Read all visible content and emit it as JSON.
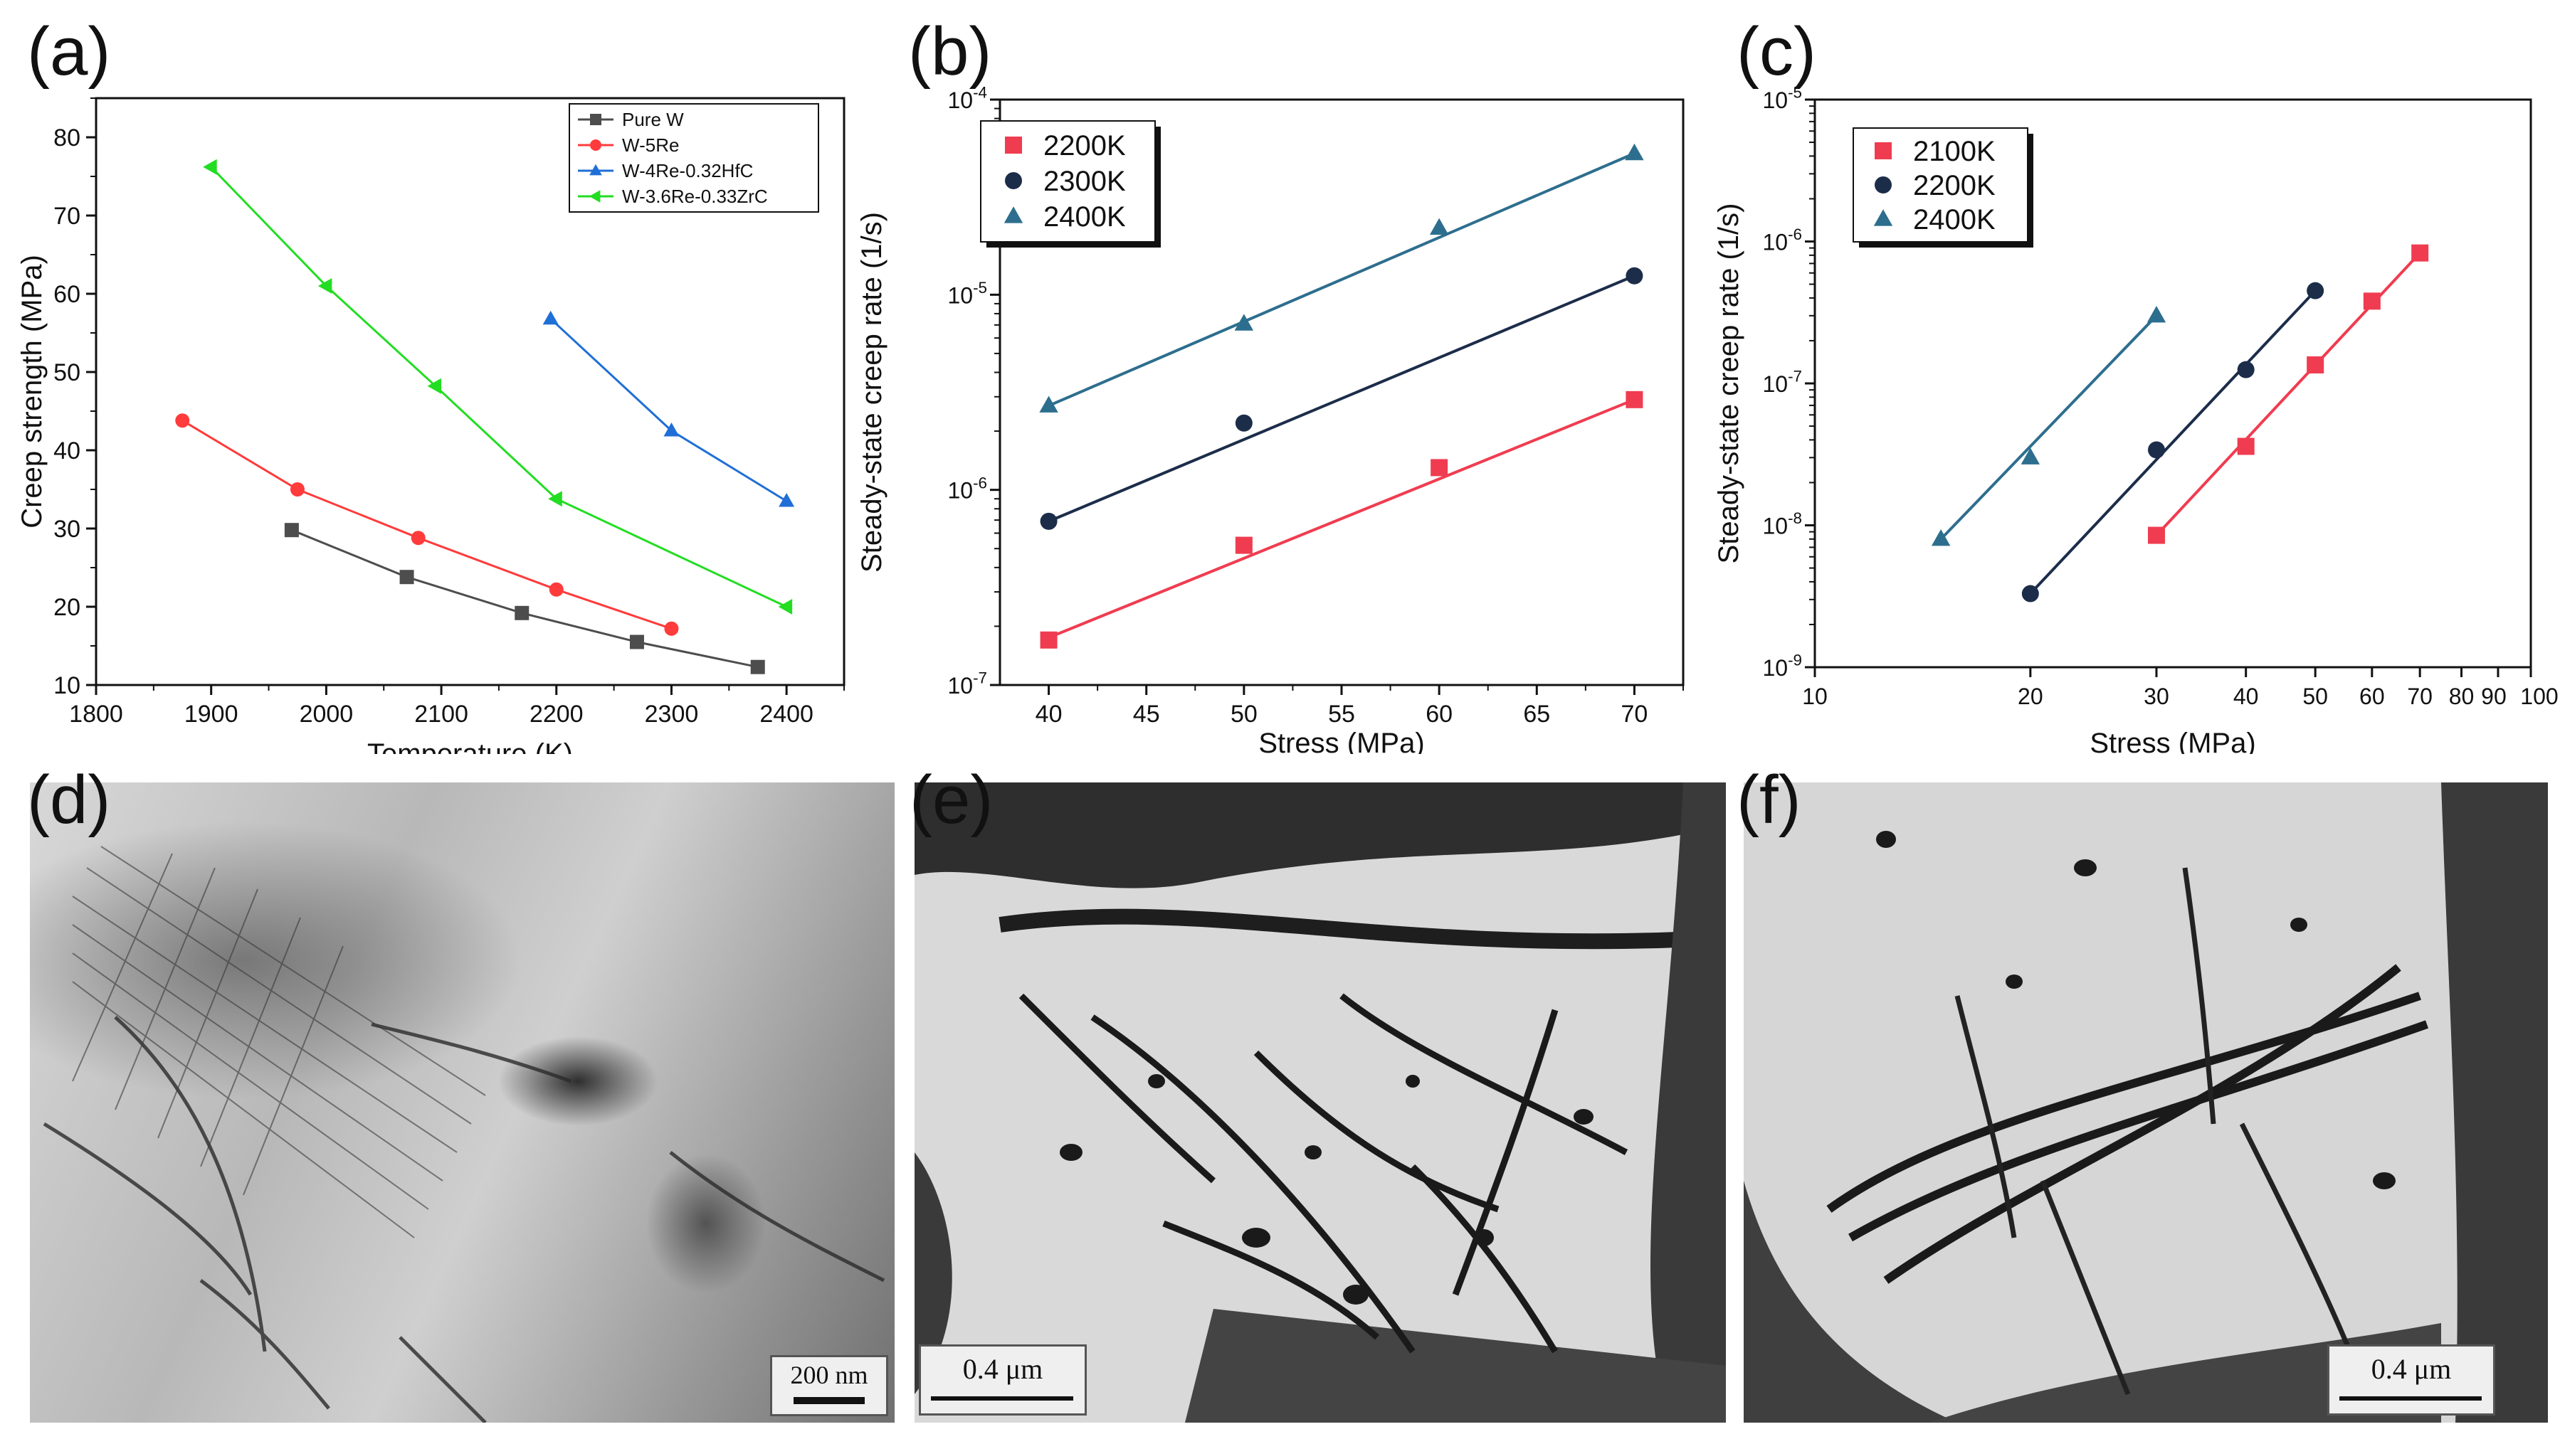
{
  "panels": {
    "a": "(a)",
    "b": "(b)",
    "c": "(c)",
    "d": "(d)",
    "e": "(e)",
    "f": "(f)"
  },
  "micrographs": {
    "d": {
      "scale_label": "200 nm"
    },
    "e": {
      "scale_label": "0.4 μm"
    },
    "f": {
      "scale_label": "0.4 μm"
    }
  },
  "colors": {
    "pure_w": "#4d4d4d",
    "w5re": "#ff3b3b",
    "hfc": "#1f6fd6",
    "zrc": "#22dd22",
    "red": "#f03c50",
    "navy": "#1c2d4a",
    "teal": "#2d6e8e"
  },
  "chart_data": [
    {
      "type": "line",
      "xlabel": "Temperature (K)",
      "ylabel": "Creep strength (MPa)",
      "xlim": [
        1800,
        2450
      ],
      "ylim": [
        10,
        85
      ],
      "xticks": [
        1800,
        1900,
        2000,
        2100,
        2200,
        2300,
        2400
      ],
      "yticks": [
        10,
        20,
        30,
        40,
        50,
        60,
        70,
        80
      ],
      "legend_position": "top-right",
      "series": [
        {
          "name": "Pure W",
          "marker": "square",
          "x": [
            1970,
            2070,
            2170,
            2270,
            2375
          ],
          "y": [
            29.8,
            23.8,
            19.2,
            15.5,
            12.3
          ]
        },
        {
          "name": "W-5Re",
          "marker": "circle",
          "x": [
            1875,
            1975,
            2080,
            2200,
            2300
          ],
          "y": [
            43.8,
            35.0,
            28.8,
            22.2,
            17.2
          ]
        },
        {
          "name": "W-4Re-0.32HfC",
          "marker": "triangle-up",
          "x": [
            2195,
            2300,
            2400
          ],
          "y": [
            56.8,
            42.5,
            33.5
          ]
        },
        {
          "name": "W-3.6Re-0.33ZrC",
          "marker": "triangle-left",
          "x": [
            1900,
            2000,
            2095,
            2200,
            2400
          ],
          "y": [
            76.2,
            61.0,
            48.2,
            33.8,
            20.0
          ]
        }
      ]
    },
    {
      "type": "scatter",
      "xlabel": "Stress (MPa)",
      "ylabel": "Steady-state creep rate (1/s)",
      "xlim": [
        37.5,
        72.5
      ],
      "ylim": [
        1e-07,
        0.0001
      ],
      "yscale": "log",
      "xticks": [
        40,
        45,
        50,
        55,
        60,
        65,
        70
      ],
      "yticks": [
        "10^-7",
        "10^-6",
        "10^-5",
        "10^-4"
      ],
      "legend_position": "top-left",
      "series": [
        {
          "name": "2200K",
          "marker": "square",
          "x": [
            40,
            50,
            60,
            70
          ],
          "y": [
            1.7e-07,
            5.2e-07,
            1.3e-06,
            2.9e-06
          ],
          "fit": [
            [
              40,
              1.75e-07
            ],
            [
              70,
              2.9e-06
            ]
          ]
        },
        {
          "name": "2300K",
          "marker": "circle",
          "x": [
            40,
            50,
            70
          ],
          "y": [
            6.9e-07,
            2.2e-06,
            1.25e-05
          ],
          "fit": [
            [
              40,
              6.9e-07
            ],
            [
              70,
              1.25e-05
            ]
          ]
        },
        {
          "name": "2400K",
          "marker": "triangle-up",
          "x": [
            40,
            50,
            60,
            70
          ],
          "y": [
            2.7e-06,
            7.1e-06,
            2.2e-05,
            5.3e-05
          ],
          "fit": [
            [
              40,
              2.7e-06
            ],
            [
              70,
              5.3e-05
            ]
          ]
        }
      ]
    },
    {
      "type": "scatter",
      "xlabel": "Stress (MPa)",
      "ylabel": "Steady-state creep rate (1/s)",
      "xlim": [
        10,
        100
      ],
      "ylim": [
        1e-09,
        1e-05
      ],
      "xscale": "log",
      "yscale": "log",
      "xticks": [
        10,
        20,
        30,
        40,
        50,
        60,
        70,
        80,
        90,
        100
      ],
      "xtick_labels": [
        "10",
        "20",
        "30",
        "40",
        "50",
        "60",
        "70",
        "80",
        "90",
        "100"
      ],
      "yticks": [
        "10^-9",
        "10^-8",
        "10^-7",
        "10^-6",
        "10^-5"
      ],
      "legend_position": "top-left",
      "series": [
        {
          "name": "2100K",
          "marker": "square",
          "x": [
            30,
            40,
            50,
            60,
            70
          ],
          "y": [
            8.5e-09,
            3.6e-08,
            1.35e-07,
            3.8e-07,
            8.3e-07
          ],
          "fit": [
            [
              30,
              8.5e-09
            ],
            [
              70,
              8.3e-07
            ]
          ]
        },
        {
          "name": "2200K",
          "marker": "circle",
          "x": [
            20,
            30,
            40,
            50
          ],
          "y": [
            3.3e-09,
            3.4e-08,
            1.25e-07,
            4.5e-07
          ],
          "fit": [
            [
              20,
              3.3e-09
            ],
            [
              50,
              4.5e-07
            ]
          ]
        },
        {
          "name": "2400K",
          "marker": "triangle-up",
          "x": [
            15,
            20,
            30
          ],
          "y": [
            8e-09,
            3e-08,
            3e-07
          ],
          "fit": [
            [
              15,
              8e-09
            ],
            [
              30,
              3e-07
            ]
          ]
        }
      ]
    }
  ]
}
